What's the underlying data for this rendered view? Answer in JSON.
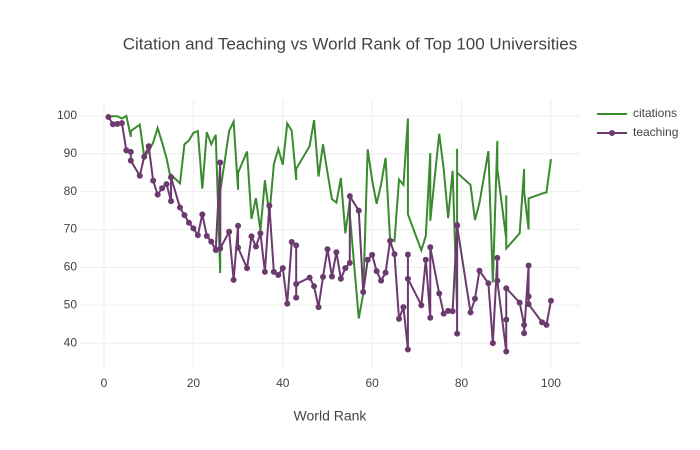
{
  "chart_data": {
    "type": "line",
    "title": "Citation and Teaching vs World Rank of Top 100 Universities",
    "x_label": "World Rank",
    "x": [
      1,
      2,
      3,
      4,
      5,
      6,
      6,
      8,
      9,
      10,
      11,
      12,
      13,
      14,
      15,
      15,
      17,
      18,
      19,
      20,
      21,
      22,
      23,
      24,
      25,
      26,
      26,
      28,
      29,
      30,
      30,
      32,
      33,
      34,
      35,
      36,
      37,
      38,
      39,
      40,
      41,
      42,
      43,
      43,
      43,
      46,
      47,
      48,
      49,
      50,
      51,
      52,
      53,
      54,
      55,
      55,
      57,
      58,
      59,
      60,
      61,
      62,
      63,
      64,
      65,
      66,
      67,
      68,
      68,
      68,
      71,
      72,
      73,
      73,
      75,
      76,
      77,
      78,
      79,
      79,
      79,
      82,
      83,
      84,
      86,
      87,
      88,
      88,
      90,
      90,
      90,
      93,
      94,
      94,
      95,
      95,
      95,
      98,
      99,
      100
    ],
    "series": [
      {
        "name": "citations",
        "color": "#3a8a30",
        "markers": false,
        "values": [
          99.7,
          99.9,
          99.9,
          99.3,
          100,
          94.5,
          96,
          97.7,
          89.2,
          90.6,
          93,
          96.8,
          93,
          88.8,
          83,
          84.5,
          82.2,
          92.5,
          93.5,
          95.5,
          96,
          80.8,
          95.7,
          92.5,
          95,
          58.5,
          80,
          96,
          98.5,
          80.5,
          85,
          90.6,
          72.8,
          78.3,
          69.7,
          83,
          73.8,
          87.2,
          91.3,
          87.1,
          98,
          96.1,
          83.1,
          85,
          86,
          92,
          98.9,
          84,
          92.5,
          85,
          78,
          77.1,
          83.6,
          69,
          77.6,
          74,
          46.5,
          53,
          91.2,
          83,
          76.8,
          82,
          88.9,
          67.6,
          67,
          83.2,
          81.8,
          99.3,
          74.5,
          74,
          64.5,
          68.3,
          90.2,
          72.3,
          95.3,
          86,
          73,
          85.5,
          49,
          91.3,
          85,
          81.8,
          72.5,
          77,
          90.7,
          56,
          93.4,
          86,
          67.5,
          79,
          65,
          69,
          86,
          80,
          70,
          78,
          78.2,
          79.5,
          79.8,
          88.6
        ]
      },
      {
        "name": "teaching",
        "color": "#6b3a6e",
        "markers": true,
        "values": [
          99.7,
          97.8,
          97.9,
          98.1,
          90.9,
          90.5,
          88.2,
          84.2,
          89.2,
          92,
          82.9,
          79.2,
          80.9,
          82,
          77.5,
          83.8,
          75.8,
          73.8,
          71.8,
          70.3,
          68.5,
          74,
          68.3,
          66.8,
          64.6,
          87.7,
          65,
          69.4,
          56.7,
          71,
          65.2,
          59.8,
          68.2,
          65.5,
          69,
          58.8,
          76.3,
          58.8,
          58,
          59.8,
          50.4,
          66.7,
          65.8,
          52,
          55.6,
          57.3,
          55,
          49.5,
          57.5,
          64.8,
          57.6,
          64,
          57,
          59.8,
          61.2,
          78.8,
          75,
          53.5,
          62,
          63.3,
          59,
          56.5,
          58.6,
          67,
          63.5,
          46.4,
          49.5,
          38.3,
          63.4,
          57,
          50,
          62,
          46.7,
          65.3,
          53.1,
          47.8,
          48.5,
          48.4,
          71.2,
          42.5,
          71,
          48.1,
          51.7,
          59.1,
          55.8,
          40,
          62.5,
          56.5,
          37.8,
          46.2,
          54.5,
          50.7,
          44.8,
          42.6,
          60.5,
          52.3,
          50.3,
          45.5,
          44.8,
          51.2
        ]
      }
    ],
    "xlim": [
      -5.37,
      106.5
    ],
    "xticks": [
      0,
      20,
      40,
      60,
      80,
      100
    ],
    "ylim": [
      32.9,
      104.2
    ],
    "yticks": [
      40,
      50,
      60,
      70,
      80,
      90,
      100
    ],
    "grid": true,
    "legend": "top-right"
  }
}
